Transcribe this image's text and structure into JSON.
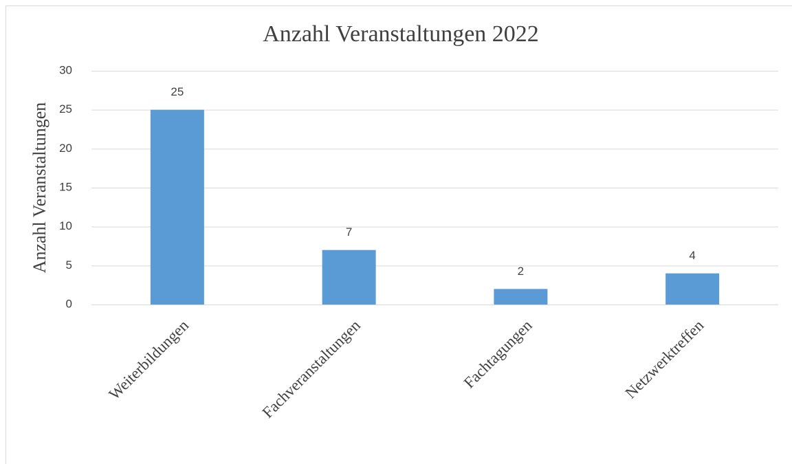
{
  "chart_data": {
    "type": "bar",
    "title": "Anzahl Veranstaltungen 2022",
    "y_label": "Anzahl Veranstaltungen",
    "categories": [
      "Weiterbildungen",
      "Fachveranstaltungen",
      "Fachtagungen",
      "Netzwerktreffen"
    ],
    "values": [
      25,
      7,
      2,
      4
    ],
    "color": "#5b9bd5",
    "ylim": [
      0,
      30
    ],
    "yticks": [
      0,
      5,
      10,
      15,
      20,
      25,
      30
    ],
    "grid": true
  }
}
